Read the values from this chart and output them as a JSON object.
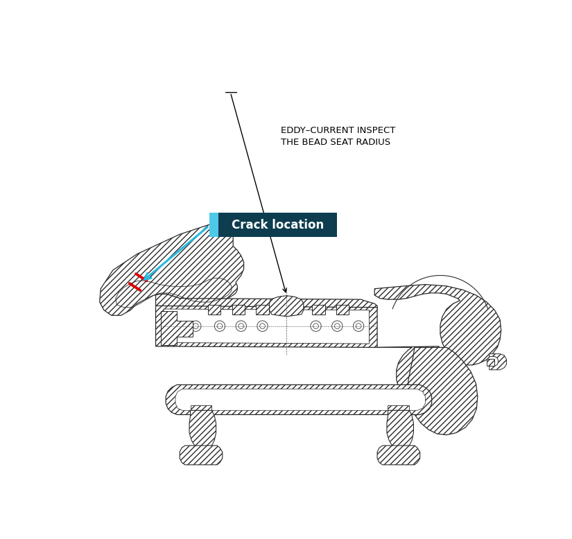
{
  "fig_width": 8.25,
  "fig_height": 7.78,
  "dpi": 100,
  "label_box_color": "#0d3d4f",
  "label_box_light": "#4dc8e8",
  "label_text": "Crack location",
  "label_text_color": "#ffffff",
  "label_fontsize": 12,
  "eddy_text_line1": "EDDY–CURRENT INSPECT",
  "eddy_text_line2": "THE BEAD SEAT RADIUS",
  "eddy_fontsize": 9.5,
  "crack_arrow_color": "#29b8e0",
  "crack_mark_color": "#dd0000",
  "line_color": "#2a2a2a",
  "hatch_color": "#444444"
}
